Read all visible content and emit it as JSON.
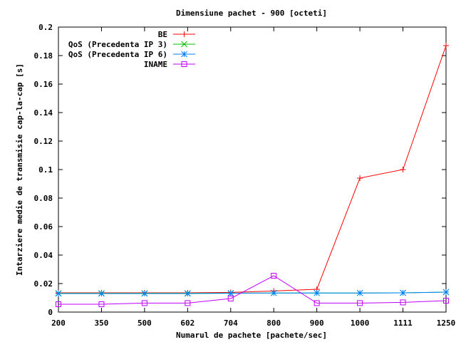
{
  "chart_data": {
    "type": "line",
    "title": "Dimensiune pachet - 900 [octeti]",
    "xlabel": "Numarul de pachete [pachete/sec]",
    "ylabel": "Intarziere medie de transmisie cap-la-cap [s]",
    "categories": [
      "200",
      "350",
      "500",
      "602",
      "704",
      "800",
      "900",
      "1000",
      "1111",
      "1250"
    ],
    "ylim": [
      0,
      0.2
    ],
    "yticks": [
      "0",
      "0.02",
      "0.04",
      "0.06",
      "0.08",
      "0.1",
      "0.12",
      "0.14",
      "0.16",
      "0.18",
      "0.2"
    ],
    "grid": false,
    "legend_position": "top-right",
    "series": [
      {
        "name": "BE",
        "color": "#ff0000",
        "marker": "plus",
        "values": [
          0.0135,
          0.0135,
          0.0135,
          0.0135,
          0.0138,
          0.0148,
          0.016,
          0.094,
          0.1,
          0.187
        ]
      },
      {
        "name": "QoS (Precedenta IP 3)",
        "color": "#00c000",
        "marker": "cross",
        "values": [
          0.0132,
          0.0132,
          0.0132,
          0.0132,
          0.0133,
          0.0134,
          0.0134,
          0.0134,
          0.0135,
          0.014
        ]
      },
      {
        "name": "QoS (Precedenta IP 6)",
        "color": "#0080ff",
        "marker": "star",
        "values": [
          0.013,
          0.013,
          0.013,
          0.013,
          0.0132,
          0.0134,
          0.0134,
          0.0134,
          0.0135,
          0.014
        ]
      },
      {
        "name": "INAME",
        "color": "#c000ff",
        "marker": "square",
        "values": [
          0.0055,
          0.0055,
          0.0063,
          0.0063,
          0.0095,
          0.0255,
          0.0063,
          0.0063,
          0.0068,
          0.008
        ]
      }
    ]
  }
}
